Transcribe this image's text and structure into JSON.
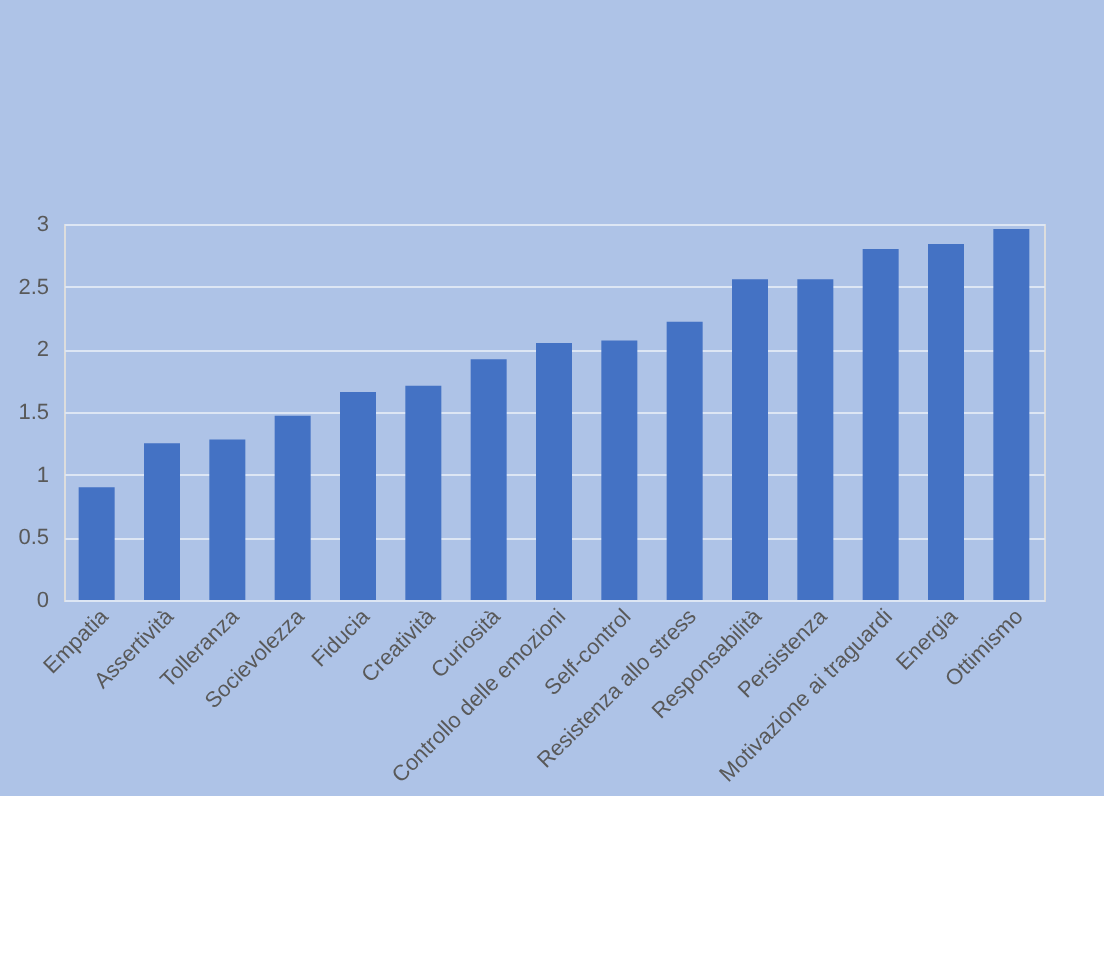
{
  "chart_data": {
    "type": "bar",
    "categories": [
      "Empatia",
      "Assertività",
      "Tolleranza",
      "Socievolezza",
      "Fiducia",
      "Creatività",
      "Curiosità",
      "Controllo delle emozioni",
      "Self-control",
      "Resistenza allo stress",
      "Responsabilità",
      "Persistenza",
      "Motivazione ai traguardi",
      "Energia",
      "Ottimismo"
    ],
    "values": [
      0.9,
      1.25,
      1.28,
      1.47,
      1.66,
      1.71,
      1.92,
      2.05,
      2.07,
      2.22,
      2.56,
      2.56,
      2.8,
      2.84,
      2.96
    ],
    "color": "#4472c4",
    "ylim": [
      0,
      3
    ],
    "yticks": [
      0,
      0.5,
      1,
      1.5,
      2,
      2.5,
      3
    ],
    "grid": "y"
  }
}
